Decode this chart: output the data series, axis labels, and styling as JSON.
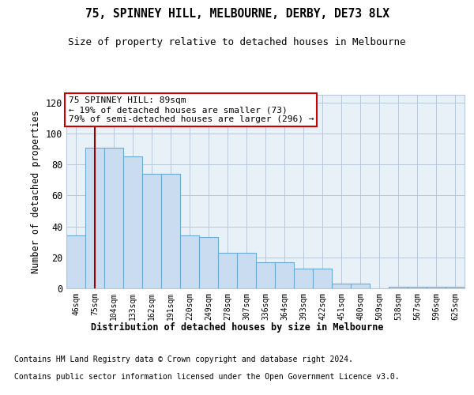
{
  "title1": "75, SPINNEY HILL, MELBOURNE, DERBY, DE73 8LX",
  "title2": "Size of property relative to detached houses in Melbourne",
  "xlabel": "Distribution of detached houses by size in Melbourne",
  "ylabel": "Number of detached properties",
  "bar_labels": [
    "46sqm",
    "75sqm",
    "104sqm",
    "133sqm",
    "162sqm",
    "191sqm",
    "220sqm",
    "249sqm",
    "278sqm",
    "307sqm",
    "336sqm",
    "364sqm",
    "393sqm",
    "422sqm",
    "451sqm",
    "480sqm",
    "509sqm",
    "538sqm",
    "567sqm",
    "596sqm",
    "625sqm"
  ],
  "bar_heights": [
    34,
    91,
    91,
    85,
    74,
    74,
    34,
    33,
    23,
    23,
    17,
    17,
    13,
    13,
    3,
    3,
    0,
    1,
    1,
    1,
    1
  ],
  "bar_color": "#c9dcf0",
  "bar_edge_color": "#6aaad4",
  "plot_bg_color": "#e8f0f8",
  "vline_x": 1,
  "vline_color": "#990000",
  "annotation_title": "75 SPINNEY HILL: 89sqm",
  "annotation_line1": "← 19% of detached houses are smaller (73)",
  "annotation_line2": "79% of semi-detached houses are larger (296) →",
  "annotation_box_color": "#ffffff",
  "annotation_box_edgecolor": "#cc0000",
  "ylim": [
    0,
    125
  ],
  "yticks": [
    0,
    20,
    40,
    60,
    80,
    100,
    120
  ],
  "footer1": "Contains HM Land Registry data © Crown copyright and database right 2024.",
  "footer2": "Contains public sector information licensed under the Open Government Licence v3.0.",
  "bg_color": "#ffffff",
  "grid_color": "#b8c8d8"
}
